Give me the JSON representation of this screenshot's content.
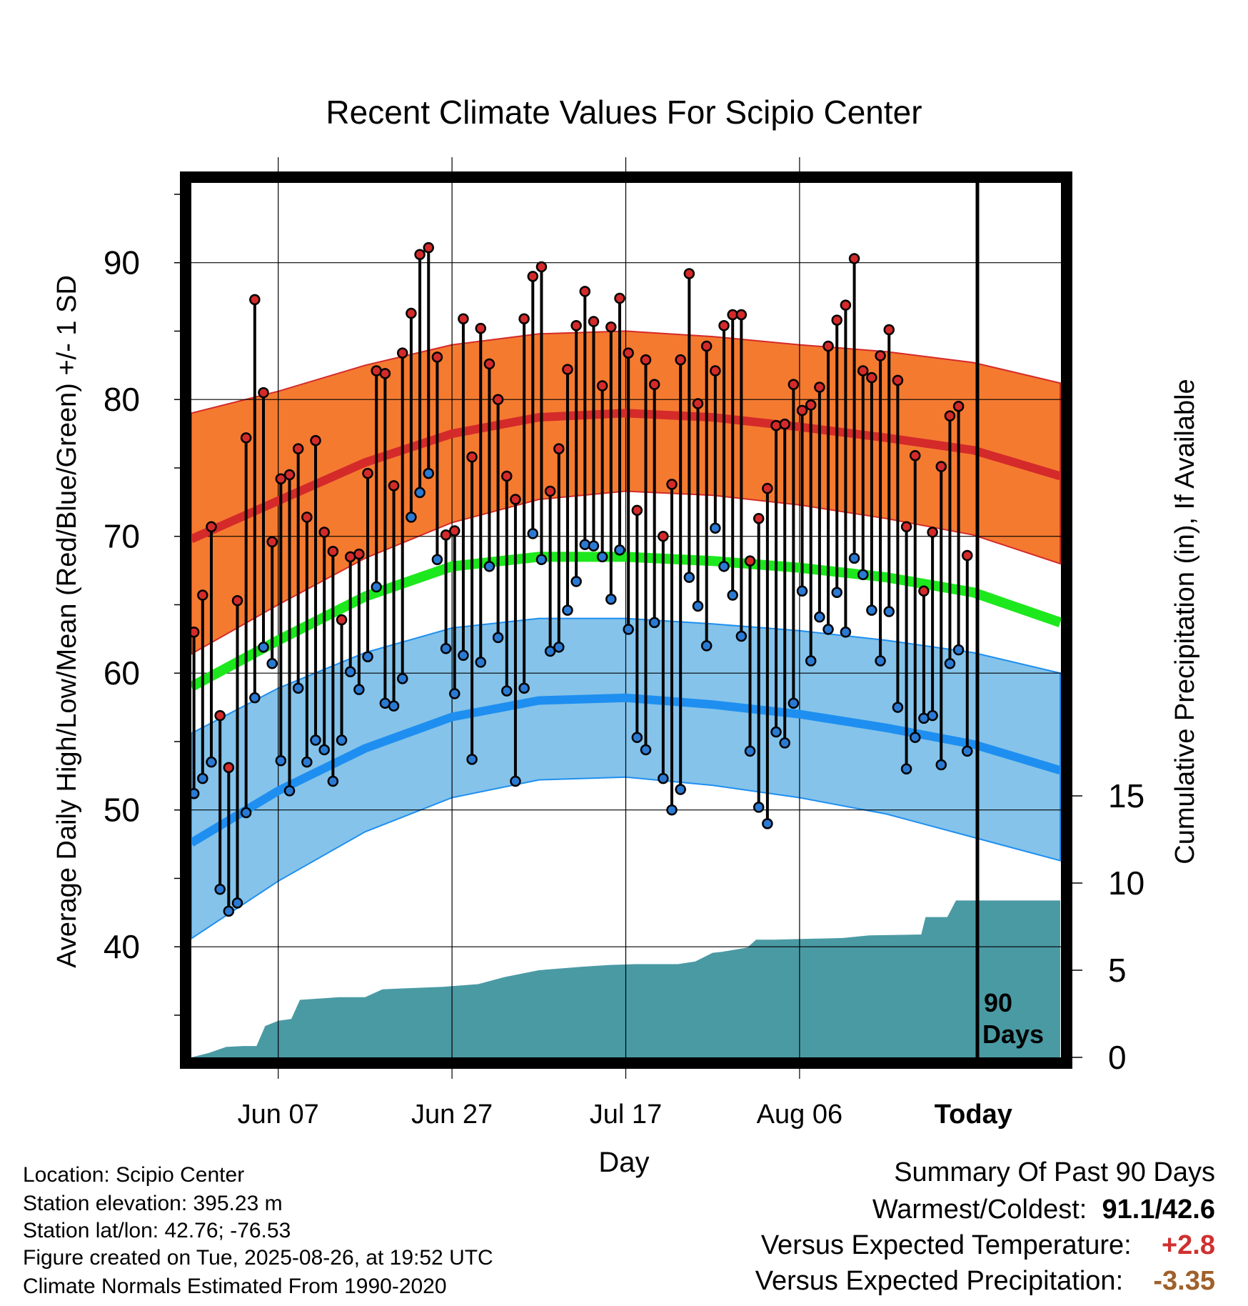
{
  "chart_data": {
    "type": "line",
    "title": "Recent Climate Values For Scipio Center",
    "xlabel": "Day",
    "ylabel": "Average Daily High/Low/Mean (Red/Blue/Green) +/- 1 SD",
    "ylabel_right": "Cumulative Precipitation (in), If Available",
    "x_ticks": [
      "Jun 07",
      "Jun 27",
      "Jul 17",
      "Aug 06",
      "Today"
    ],
    "y_ticks": [
      40,
      50,
      60,
      70,
      80,
      90
    ],
    "y_ticks_right": [
      0,
      5,
      10,
      15
    ],
    "ylim": [
      33,
      96
    ],
    "ylim_right": [
      0,
      52
    ],
    "xlim_days": [
      0,
      100
    ],
    "grid": true,
    "marker_label": "90 Days",
    "colors": {
      "high_band": "#f47a30",
      "high_line": "#d42a2a",
      "low_band": "#85c3ea",
      "low_line": "#1e8ff0",
      "mean_line": "#1de81d",
      "precip": "#4a9aa4",
      "high_point": "#d42a2a",
      "low_point": "#2a7ad4"
    },
    "normals": {
      "day": [
        0,
        10,
        20,
        30,
        40,
        50,
        60,
        70,
        80,
        90,
        100
      ],
      "high_mean": [
        69.8,
        72.6,
        75.4,
        77.5,
        78.7,
        79.0,
        78.7,
        78.0,
        77.2,
        76.3,
        74.4
      ],
      "high_upper": [
        79.0,
        80.6,
        82.5,
        84.0,
        84.8,
        85.0,
        84.6,
        84.0,
        83.5,
        82.7,
        81.2
      ],
      "high_lower": [
        61.4,
        65.0,
        68.4,
        71.0,
        72.7,
        73.3,
        73.0,
        72.3,
        71.3,
        70.1,
        68.0
      ],
      "low_mean": [
        47.6,
        51.4,
        54.5,
        56.8,
        58.0,
        58.2,
        57.7,
        57.0,
        56.0,
        54.8,
        52.9
      ],
      "low_upper": [
        55.6,
        58.9,
        61.5,
        63.3,
        64.0,
        64.0,
        63.6,
        63.1,
        62.4,
        61.5,
        60.0
      ],
      "low_lower": [
        40.6,
        44.8,
        48.4,
        50.9,
        52.2,
        52.4,
        51.8,
        50.9,
        49.7,
        48.0,
        46.3
      ],
      "mean": [
        59.0,
        62.4,
        65.6,
        67.8,
        68.5,
        68.5,
        68.2,
        67.7,
        67.0,
        65.9,
        63.7
      ]
    },
    "daily": {
      "start_day": 0,
      "high": [
        63.0,
        65.7,
        70.7,
        56.9,
        53.1,
        65.3,
        77.2,
        87.3,
        80.5,
        69.6,
        74.2,
        74.5,
        76.4,
        71.4,
        77.0,
        70.3,
        68.9,
        63.9,
        68.5,
        68.7,
        74.6,
        82.1,
        81.9,
        73.7,
        83.4,
        86.3,
        90.6,
        91.1,
        83.1,
        70.1,
        70.4,
        85.9,
        75.8,
        85.2,
        82.6,
        80.0,
        74.4,
        72.7,
        85.9,
        89.0,
        89.7,
        73.3,
        76.4,
        82.2,
        85.4,
        87.9,
        85.7,
        81.0,
        85.3,
        87.4,
        83.4,
        71.9,
        82.9,
        81.1,
        70.0,
        73.8,
        82.9,
        89.2,
        79.7,
        83.9,
        82.1,
        85.4,
        86.2,
        86.2,
        68.2,
        71.3,
        73.5,
        78.1,
        78.2,
        81.1,
        79.2,
        79.6,
        80.9,
        83.9,
        85.8,
        86.9,
        90.3,
        82.1,
        81.6,
        83.2,
        85.1,
        81.4,
        70.7,
        75.9,
        66.0,
        70.3,
        75.1,
        78.8,
        79.5,
        68.6
      ],
      "low": [
        51.2,
        52.3,
        53.5,
        44.2,
        42.6,
        43.2,
        49.8,
        58.2,
        61.9,
        60.7,
        53.6,
        51.4,
        58.9,
        53.5,
        55.1,
        54.4,
        52.1,
        55.1,
        60.1,
        58.8,
        61.2,
        66.3,
        57.8,
        57.6,
        59.6,
        71.4,
        73.2,
        74.6,
        68.3,
        61.8,
        58.5,
        61.3,
        53.7,
        60.8,
        67.8,
        62.6,
        58.7,
        52.1,
        58.9,
        70.2,
        68.3,
        61.6,
        61.9,
        64.6,
        66.7,
        69.4,
        69.3,
        68.5,
        65.4,
        69.0,
        63.2,
        55.3,
        54.4,
        63.7,
        52.3,
        50.0,
        51.5,
        67.0,
        64.9,
        62.0,
        70.6,
        67.8,
        65.7,
        62.7,
        54.3,
        50.2,
        49.0,
        55.7,
        54.9,
        57.8,
        66.0,
        60.9,
        64.1,
        63.2,
        65.9,
        63.0,
        68.4,
        67.2,
        64.6,
        60.9,
        64.5,
        57.5,
        53.0,
        55.3,
        56.7,
        56.9,
        53.3,
        60.7,
        61.7,
        54.3
      ]
    },
    "precip": {
      "day": [
        0,
        2,
        4,
        6,
        7.5,
        8.5,
        10,
        11.5,
        12.5,
        14,
        17,
        20,
        22,
        24,
        29,
        33,
        36,
        40,
        45,
        48,
        51,
        56,
        58,
        60,
        61,
        64,
        65,
        67,
        75,
        78,
        84,
        84.5,
        87,
        88,
        100
      ],
      "cum": [
        0,
        0.25,
        0.6,
        0.65,
        0.65,
        1.8,
        2.1,
        2.2,
        3.3,
        3.35,
        3.45,
        3.45,
        3.9,
        3.95,
        4.05,
        4.2,
        4.6,
        5.0,
        5.2,
        5.3,
        5.35,
        5.35,
        5.5,
        6.0,
        6.05,
        6.3,
        6.75,
        6.75,
        6.85,
        7.0,
        7.05,
        8.05,
        8.05,
        9.0,
        9.0
      ]
    }
  },
  "info": {
    "location": "Location: Scipio Center",
    "elevation": "Station elevation: 395.23 m",
    "latlon": "Station lat/lon: 42.76; -76.53",
    "created": "Figure created on Tue, 2025-08-26, at 19:52 UTC",
    "normals": "Climate Normals Estimated From 1990-2020"
  },
  "summary": {
    "title": "Summary Of Past 90 Days",
    "warmest_label": "Warmest/Coldest:",
    "warmest_value": "91.1",
    "coldest_value": "42.6",
    "temp_label": "Versus Expected Temperature:",
    "temp_value": "+2.8",
    "precip_label": "Versus Expected Precipitation:",
    "precip_value": "-3.35"
  }
}
